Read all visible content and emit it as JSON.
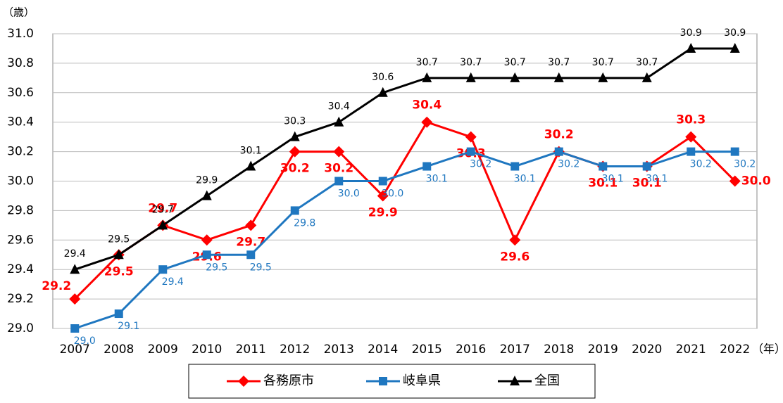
{
  "chart_data": {
    "type": "line",
    "y_label": "（歳）",
    "x_label": "（年）",
    "categories": [
      "2007",
      "2008",
      "2009",
      "2010",
      "2011",
      "2012",
      "2013",
      "2014",
      "2015",
      "2016",
      "2017",
      "2018",
      "2019",
      "2020",
      "2021",
      "2022"
    ],
    "series": [
      {
        "name": "各務原市",
        "color": "#ff0000",
        "marker": "diamond",
        "values": [
          29.2,
          29.5,
          29.7,
          29.6,
          29.7,
          30.2,
          30.2,
          29.9,
          30.4,
          30.3,
          29.6,
          30.2,
          30.1,
          30.1,
          30.3,
          30.0
        ],
        "value_labels": [
          "29.2",
          "29.5",
          "29.7",
          "29.6",
          "29.7",
          "30.2",
          "30.2",
          "29.9",
          "30.4",
          "30.3",
          "29.6",
          "30.2",
          "30.1",
          "30.1",
          "30.3",
          "30.0"
        ]
      },
      {
        "name": "岐阜県",
        "color": "#1f77c0",
        "marker": "square",
        "values": [
          29.0,
          29.1,
          29.4,
          29.5,
          29.5,
          29.8,
          30.0,
          30.0,
          30.1,
          30.2,
          30.1,
          30.2,
          30.1,
          30.1,
          30.2,
          30.2
        ],
        "value_labels": [
          "29.0",
          "29.1",
          "29.4",
          "29.5",
          "29.5",
          "29.8",
          "30.0",
          "30.0",
          "30.1",
          "30.2",
          "30.1",
          "30.2",
          "30.1",
          "30.1",
          "30.2",
          "30.2"
        ]
      },
      {
        "name": "全国",
        "color": "#000000",
        "marker": "triangle",
        "values": [
          29.4,
          29.5,
          29.7,
          29.9,
          30.1,
          30.3,
          30.4,
          30.6,
          30.7,
          30.7,
          30.7,
          30.7,
          30.7,
          30.7,
          30.9,
          30.9
        ],
        "value_labels": [
          "29.4",
          "29.5",
          "29.7",
          "29.9",
          "30.1",
          "30.3",
          "30.4",
          "30.6",
          "30.7",
          "30.7",
          "30.7",
          "30.7",
          "30.7",
          "30.7",
          "30.9",
          "30.9"
        ]
      }
    ],
    "ylim": [
      29.0,
      31.0
    ],
    "yticks": [
      {
        "value": 29.0,
        "label": "29.0"
      },
      {
        "value": 29.2,
        "label": "29.2"
      },
      {
        "value": 29.4,
        "label": "29.4"
      },
      {
        "value": 29.6,
        "label": "29.6"
      },
      {
        "value": 29.8,
        "label": "29.8"
      },
      {
        "value": 30.0,
        "label": "30.0"
      },
      {
        "value": 30.2,
        "label": "30.2"
      },
      {
        "value": 30.4,
        "label": "30.4"
      },
      {
        "value": 30.6,
        "label": "30.6"
      },
      {
        "value": 30.8,
        "label": "30.8"
      },
      {
        "value": 31.0,
        "label": "31.0"
      }
    ],
    "grid": true
  }
}
